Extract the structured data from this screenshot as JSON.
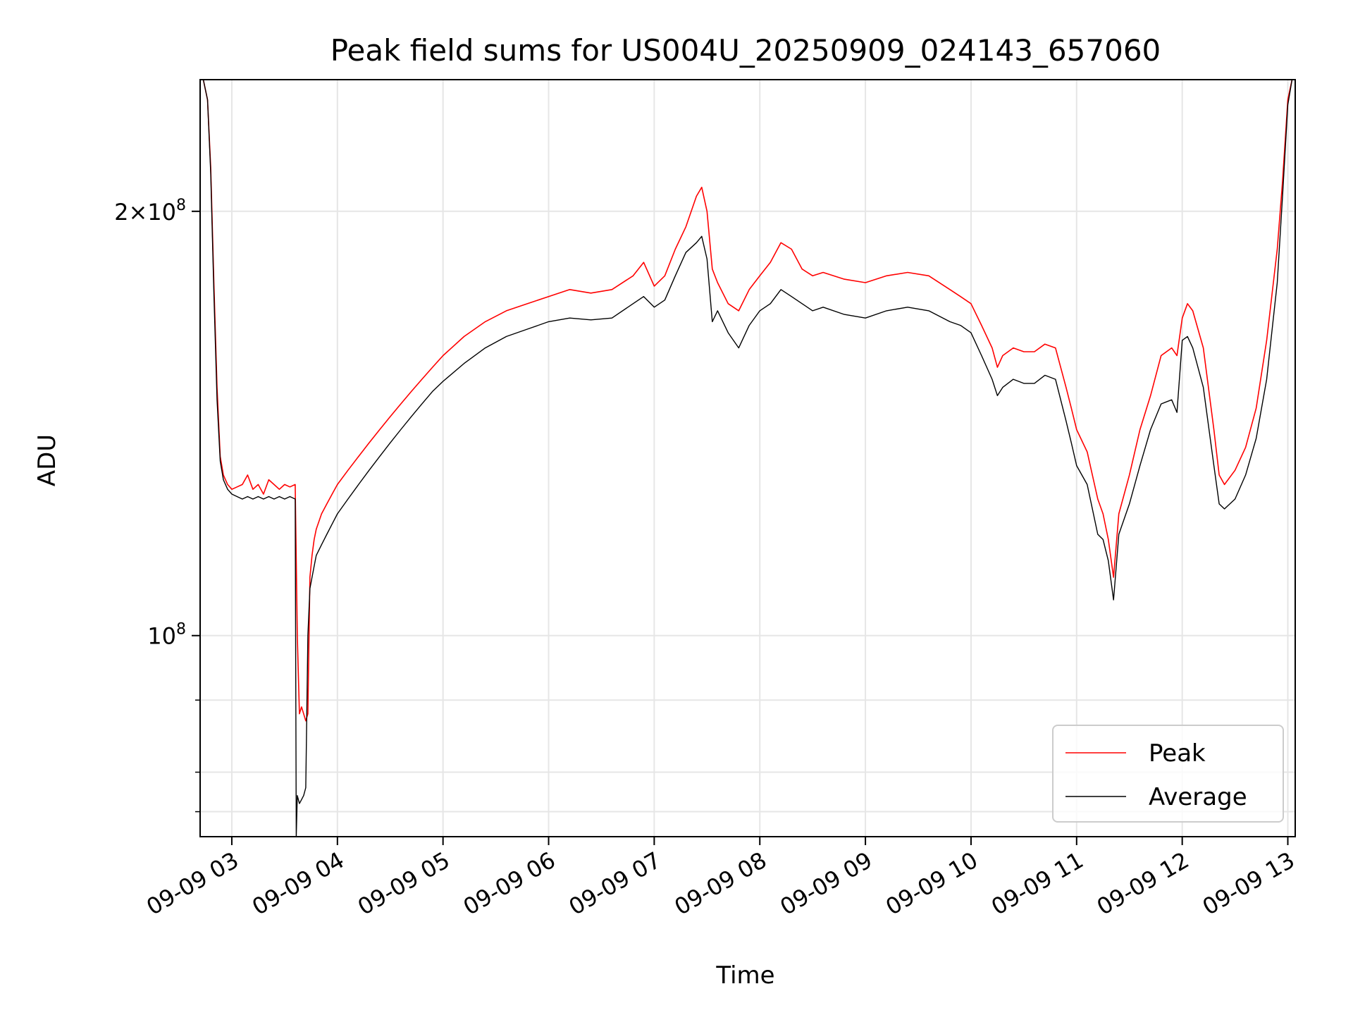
{
  "chart_data": {
    "type": "line",
    "title": "Peak field sums for US004U_20250909_024143_657060",
    "xlabel": "Time",
    "ylabel": "ADU",
    "y_scale": "log",
    "grid": true,
    "legend_position": "lower-right",
    "xlim": [
      2.7,
      13.07
    ],
    "ylim": [
      72000000,
      248000000
    ],
    "x_ticks": [
      {
        "x": 3,
        "label": "09-09 03"
      },
      {
        "x": 4,
        "label": "09-09 04"
      },
      {
        "x": 5,
        "label": "09-09 05"
      },
      {
        "x": 6,
        "label": "09-09 06"
      },
      {
        "x": 7,
        "label": "09-09 07"
      },
      {
        "x": 8,
        "label": "09-09 08"
      },
      {
        "x": 9,
        "label": "09-09 09"
      },
      {
        "x": 10,
        "label": "09-09 10"
      },
      {
        "x": 11,
        "label": "09-09 11"
      },
      {
        "x": 12,
        "label": "09-09 12"
      },
      {
        "x": 13,
        "label": "09-09 13"
      }
    ],
    "y_major_ticks": [
      {
        "y": 100000000,
        "mantissa": "",
        "exponent": "8",
        "label": "10^8"
      },
      {
        "y": 200000000,
        "mantissa": "2",
        "exponent": "8",
        "label": "2×10^8"
      }
    ],
    "y_minor_ticks": [
      75000000,
      80000000,
      90000000
    ],
    "series": [
      {
        "name": "Peak",
        "color": "#ff0000",
        "x": [
          2.73,
          2.77,
          2.8,
          2.83,
          2.86,
          2.89,
          2.92,
          2.96,
          3.0,
          3.05,
          3.1,
          3.15,
          3.2,
          3.25,
          3.3,
          3.35,
          3.4,
          3.45,
          3.5,
          3.55,
          3.6,
          3.62,
          3.64,
          3.66,
          3.68,
          3.7,
          3.72,
          3.74,
          3.76,
          3.78,
          3.8,
          3.85,
          3.9,
          3.95,
          4.0,
          4.1,
          4.2,
          4.3,
          4.4,
          4.5,
          4.6,
          4.7,
          4.8,
          4.9,
          5.0,
          5.2,
          5.4,
          5.6,
          5.8,
          6.0,
          6.2,
          6.4,
          6.6,
          6.8,
          6.9,
          7.0,
          7.1,
          7.2,
          7.3,
          7.4,
          7.45,
          7.5,
          7.55,
          7.6,
          7.7,
          7.8,
          7.9,
          8.0,
          8.1,
          8.2,
          8.3,
          8.4,
          8.5,
          8.6,
          8.8,
          9.0,
          9.2,
          9.4,
          9.6,
          9.8,
          9.9,
          10.0,
          10.1,
          10.2,
          10.25,
          10.3,
          10.4,
          10.5,
          10.6,
          10.7,
          10.8,
          10.9,
          10.95,
          11.0,
          11.1,
          11.2,
          11.25,
          11.3,
          11.35,
          11.4,
          11.5,
          11.6,
          11.7,
          11.8,
          11.9,
          11.95,
          12.0,
          12.05,
          12.1,
          12.2,
          12.3,
          12.35,
          12.4,
          12.5,
          12.6,
          12.7,
          12.8,
          12.9,
          12.95,
          13.0,
          13.04
        ],
        "values": [
          248000000,
          240000000,
          215000000,
          178000000,
          150000000,
          134000000,
          130000000,
          128000000,
          127000000,
          127500000,
          128000000,
          130000000,
          127000000,
          128000000,
          126000000,
          129000000,
          128000000,
          127000000,
          128000000,
          127500000,
          128000000,
          100000000,
          88000000,
          89000000,
          88000000,
          87000000,
          88000000,
          110000000,
          114000000,
          117000000,
          119000000,
          122000000,
          124000000,
          126000000,
          128000000,
          131000000,
          134000000,
          137000000,
          140000000,
          143000000,
          146000000,
          149000000,
          152000000,
          155000000,
          158000000,
          163000000,
          167000000,
          170000000,
          172000000,
          174000000,
          176000000,
          175000000,
          176000000,
          180000000,
          184000000,
          177000000,
          180000000,
          188000000,
          195000000,
          205000000,
          208000000,
          200000000,
          182000000,
          178000000,
          172000000,
          170000000,
          176000000,
          180000000,
          184000000,
          190000000,
          188000000,
          182000000,
          180000000,
          181000000,
          179000000,
          178000000,
          180000000,
          181000000,
          180000000,
          176000000,
          174000000,
          172000000,
          166000000,
          160000000,
          155000000,
          158000000,
          160000000,
          159000000,
          159000000,
          161000000,
          160000000,
          150000000,
          145000000,
          140000000,
          135000000,
          125000000,
          122000000,
          117000000,
          110000000,
          122000000,
          130000000,
          140000000,
          148000000,
          158000000,
          160000000,
          158000000,
          168000000,
          172000000,
          170000000,
          160000000,
          140000000,
          130000000,
          128000000,
          131000000,
          136000000,
          145000000,
          162000000,
          188000000,
          210000000,
          240000000,
          248000000
        ]
      },
      {
        "name": "Average",
        "color": "#000000",
        "x": [
          2.73,
          2.77,
          2.8,
          2.83,
          2.86,
          2.89,
          2.92,
          2.96,
          3.0,
          3.05,
          3.1,
          3.15,
          3.2,
          3.25,
          3.3,
          3.35,
          3.4,
          3.45,
          3.5,
          3.55,
          3.6,
          3.61,
          3.62,
          3.64,
          3.66,
          3.68,
          3.7,
          3.72,
          3.74,
          3.76,
          3.78,
          3.8,
          3.85,
          3.9,
          3.95,
          4.0,
          4.1,
          4.2,
          4.3,
          4.4,
          4.5,
          4.6,
          4.7,
          4.8,
          4.9,
          5.0,
          5.2,
          5.4,
          5.6,
          5.8,
          6.0,
          6.2,
          6.4,
          6.6,
          6.8,
          6.9,
          7.0,
          7.1,
          7.2,
          7.3,
          7.4,
          7.45,
          7.5,
          7.55,
          7.6,
          7.7,
          7.8,
          7.9,
          8.0,
          8.1,
          8.2,
          8.3,
          8.4,
          8.5,
          8.6,
          8.8,
          9.0,
          9.2,
          9.4,
          9.6,
          9.8,
          9.9,
          10.0,
          10.1,
          10.2,
          10.25,
          10.3,
          10.4,
          10.5,
          10.6,
          10.7,
          10.8,
          10.9,
          10.95,
          11.0,
          11.1,
          11.2,
          11.25,
          11.3,
          11.35,
          11.4,
          11.5,
          11.6,
          11.7,
          11.8,
          11.9,
          11.95,
          12.0,
          12.05,
          12.1,
          12.2,
          12.3,
          12.35,
          12.4,
          12.5,
          12.6,
          12.7,
          12.8,
          12.9,
          12.95,
          13.0,
          13.04
        ],
        "values": [
          248000000,
          240000000,
          213000000,
          175000000,
          147000000,
          133000000,
          129000000,
          127000000,
          126000000,
          125500000,
          125000000,
          125500000,
          125000000,
          125500000,
          125000000,
          125500000,
          125000000,
          125500000,
          125000000,
          125500000,
          125000000,
          72000000,
          77000000,
          76000000,
          76500000,
          77000000,
          78000000,
          100000000,
          108000000,
          110000000,
          112000000,
          114000000,
          116000000,
          118000000,
          120000000,
          122000000,
          125000000,
          128000000,
          131000000,
          134000000,
          137000000,
          140000000,
          143000000,
          146000000,
          149000000,
          151500000,
          156000000,
          160000000,
          163000000,
          165000000,
          167000000,
          168000000,
          167500000,
          168000000,
          172000000,
          174000000,
          171000000,
          173000000,
          180000000,
          187000000,
          190000000,
          192000000,
          185000000,
          167000000,
          170000000,
          164000000,
          160000000,
          166000000,
          170000000,
          172000000,
          176000000,
          174000000,
          172000000,
          170000000,
          171000000,
          169000000,
          168000000,
          170000000,
          171000000,
          170000000,
          167000000,
          166000000,
          164000000,
          158000000,
          152000000,
          148000000,
          150000000,
          152000000,
          151000000,
          151000000,
          153000000,
          152000000,
          142000000,
          137000000,
          132000000,
          128000000,
          118000000,
          117000000,
          113000000,
          106000000,
          118000000,
          124000000,
          132000000,
          140000000,
          146000000,
          147000000,
          144000000,
          162000000,
          163000000,
          160000000,
          150000000,
          132000000,
          124000000,
          123000000,
          125000000,
          130000000,
          138000000,
          152000000,
          178000000,
          205000000,
          238000000,
          248000000
        ]
      }
    ]
  }
}
